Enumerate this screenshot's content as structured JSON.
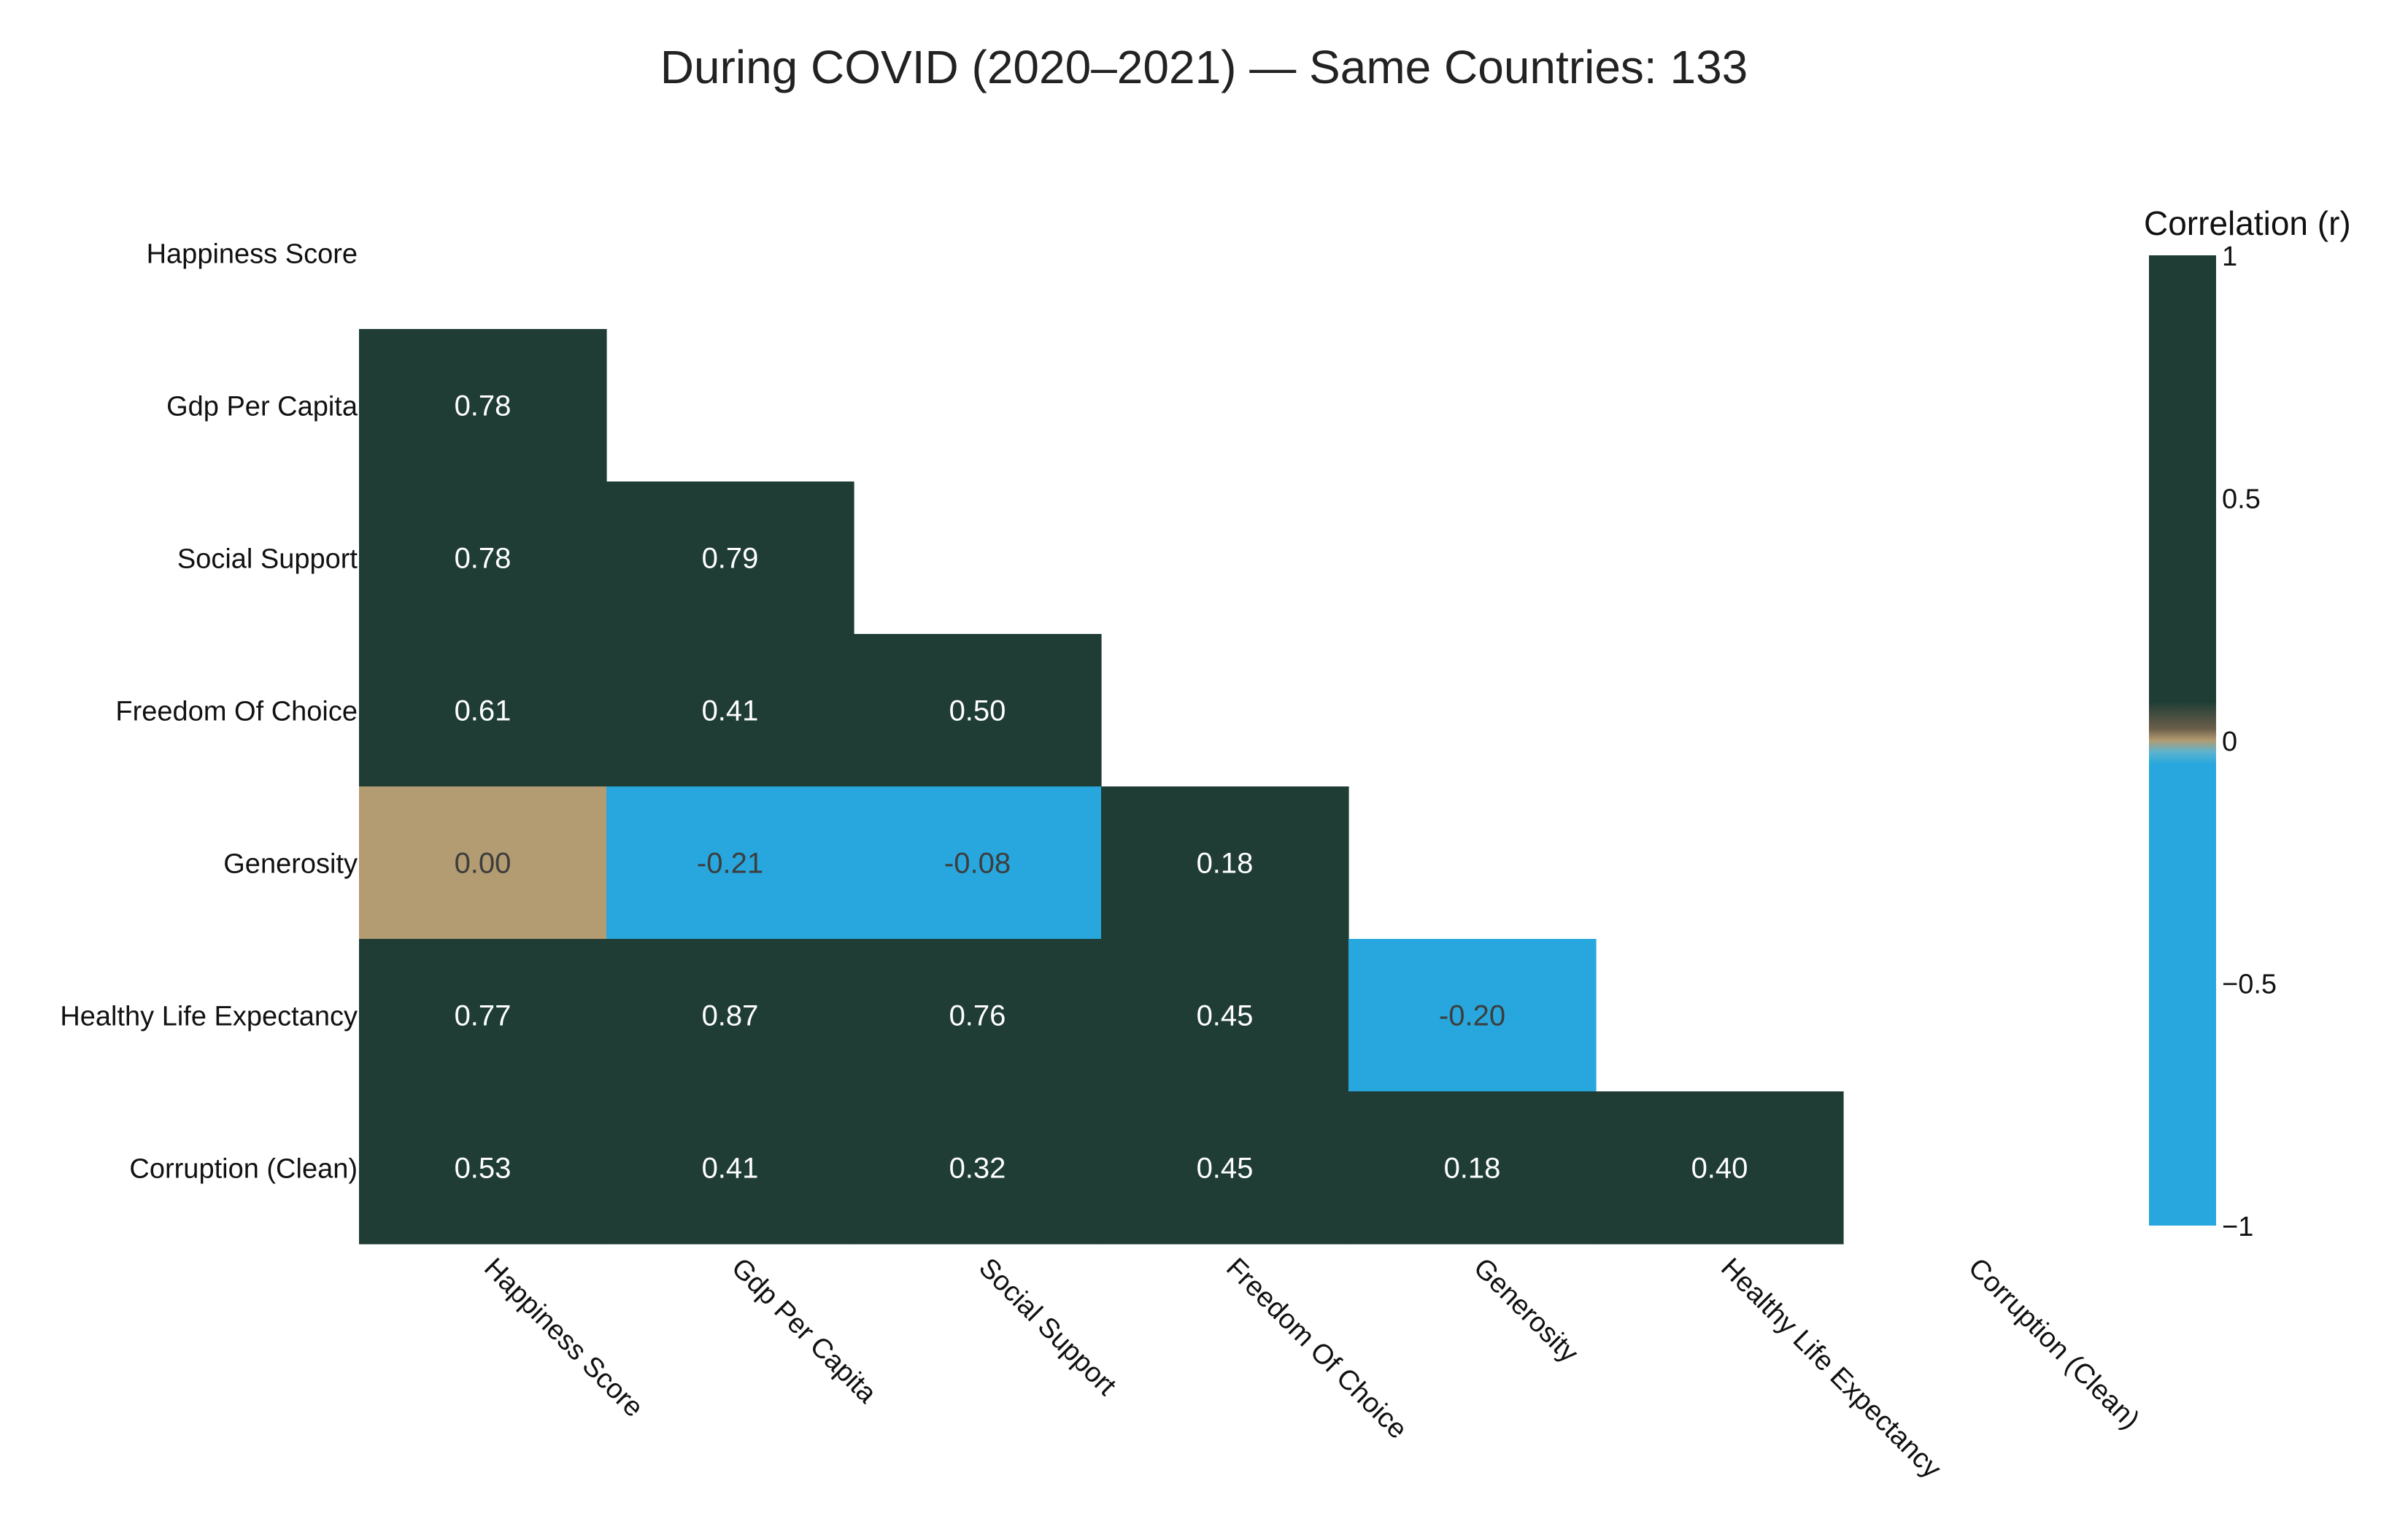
{
  "chart_data": {
    "type": "heatmap",
    "title": "During COVID (2020–2021) — Same Countries: 133",
    "labels": [
      "Happiness Score",
      "Gdp Per Capita",
      "Social Support",
      "Freedom Of Choice",
      "Generosity",
      "Healthy Life Expectancy",
      "Corruption (Clean)"
    ],
    "lower_triangle": [
      [],
      [
        0.78
      ],
      [
        0.78,
        0.79
      ],
      [
        0.61,
        0.41,
        0.5
      ],
      [
        0.0,
        -0.21,
        -0.08,
        0.18
      ],
      [
        0.77,
        0.87,
        0.76,
        0.45,
        -0.2
      ],
      [
        0.53,
        0.41,
        0.32,
        0.45,
        0.18,
        0.4
      ]
    ],
    "value_labels": [
      [],
      [
        "0.78"
      ],
      [
        "0.78",
        "0.79"
      ],
      [
        "0.61",
        "0.41",
        "0.50"
      ],
      [
        "0.00",
        "-0.21",
        "-0.08",
        "0.18"
      ],
      [
        "0.77",
        "0.87",
        "0.76",
        "0.45",
        "-0.20"
      ],
      [
        "0.53",
        "0.41",
        "0.32",
        "0.45",
        "0.18",
        "0.40"
      ]
    ],
    "colorbar": {
      "title": "Correlation (r)",
      "range": [
        -1,
        1
      ],
      "ticks": [
        1,
        0.5,
        0,
        -0.5,
        -1
      ],
      "tick_labels": [
        "1",
        "0.5",
        "0",
        "−0.5",
        "−1"
      ]
    },
    "colors": {
      "positive": "#1f3d35",
      "zero": "#b39b72",
      "negative": "#27a7dd",
      "text_light": "#ffffff",
      "text_dark": "#3d3d3d"
    }
  }
}
